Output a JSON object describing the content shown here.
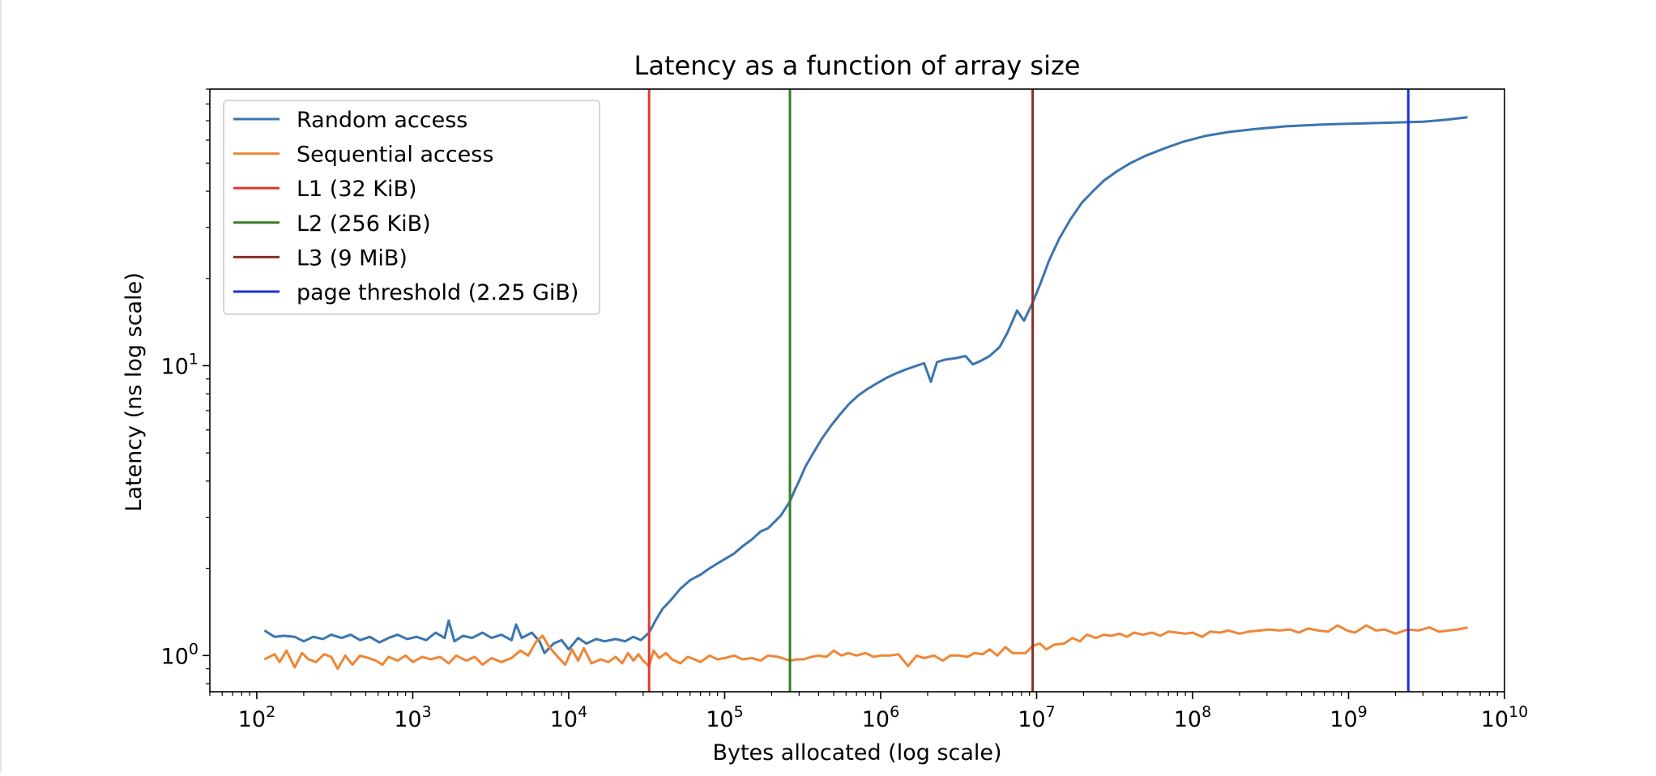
{
  "chart_data": {
    "type": "line",
    "title": "Latency as a function of array size",
    "xlabel": "Bytes allocated (log scale)",
    "ylabel": "Latency (ns log scale)",
    "x_scale": "log",
    "y_scale": "log",
    "xlim": [
      50,
      10000000000
    ],
    "ylim": [
      0.75,
      90
    ],
    "x_ticks": [
      {
        "value": 100,
        "base": "10",
        "exp": "2"
      },
      {
        "value": 1000,
        "base": "10",
        "exp": "3"
      },
      {
        "value": 10000,
        "base": "10",
        "exp": "4"
      },
      {
        "value": 100000,
        "base": "10",
        "exp": "5"
      },
      {
        "value": 1000000,
        "base": "10",
        "exp": "6"
      },
      {
        "value": 10000000,
        "base": "10",
        "exp": "7"
      },
      {
        "value": 100000000,
        "base": "10",
        "exp": "8"
      },
      {
        "value": 1000000000,
        "base": "10",
        "exp": "9"
      },
      {
        "value": 10000000000,
        "base": "10",
        "exp": "10"
      }
    ],
    "y_ticks": [
      {
        "value": 1,
        "base": "10",
        "exp": "0"
      },
      {
        "value": 10,
        "base": "10",
        "exp": "1"
      }
    ],
    "grid": false,
    "legend_position": "upper left",
    "series": [
      {
        "name": "Random access",
        "color": "#3b75af",
        "points": [
          [
            112,
            1.22
          ],
          [
            130,
            1.16
          ],
          [
            150,
            1.17
          ],
          [
            175,
            1.16
          ],
          [
            200,
            1.12
          ],
          [
            230,
            1.16
          ],
          [
            265,
            1.14
          ],
          [
            300,
            1.18
          ],
          [
            350,
            1.15
          ],
          [
            400,
            1.18
          ],
          [
            460,
            1.13
          ],
          [
            530,
            1.16
          ],
          [
            610,
            1.11
          ],
          [
            700,
            1.15
          ],
          [
            800,
            1.18
          ],
          [
            920,
            1.14
          ],
          [
            1060,
            1.16
          ],
          [
            1220,
            1.13
          ],
          [
            1400,
            1.2
          ],
          [
            1600,
            1.15
          ],
          [
            1700,
            1.32
          ],
          [
            1850,
            1.12
          ],
          [
            2100,
            1.17
          ],
          [
            2400,
            1.15
          ],
          [
            2800,
            1.2
          ],
          [
            3200,
            1.15
          ],
          [
            3700,
            1.18
          ],
          [
            4300,
            1.13
          ],
          [
            4600,
            1.28
          ],
          [
            5000,
            1.15
          ],
          [
            5800,
            1.2
          ],
          [
            6500,
            1.12
          ],
          [
            7000,
            1.02
          ],
          [
            8000,
            1.1
          ],
          [
            9000,
            1.13
          ],
          [
            10000,
            1.05
          ],
          [
            11500,
            1.15
          ],
          [
            13000,
            1.1
          ],
          [
            15000,
            1.14
          ],
          [
            17000,
            1.12
          ],
          [
            20000,
            1.14
          ],
          [
            23000,
            1.12
          ],
          [
            26000,
            1.16
          ],
          [
            29000,
            1.13
          ],
          [
            32768,
            1.2
          ],
          [
            36000,
            1.32
          ],
          [
            40000,
            1.45
          ],
          [
            45000,
            1.55
          ],
          [
            52000,
            1.7
          ],
          [
            60000,
            1.82
          ],
          [
            70000,
            1.9
          ],
          [
            80000,
            2.0
          ],
          [
            90000,
            2.08
          ],
          [
            100000,
            2.15
          ],
          [
            115000,
            2.25
          ],
          [
            130000,
            2.38
          ],
          [
            150000,
            2.52
          ],
          [
            170000,
            2.68
          ],
          [
            190000,
            2.75
          ],
          [
            210000,
            2.9
          ],
          [
            230000,
            3.05
          ],
          [
            262144,
            3.4
          ],
          [
            280000,
            3.7
          ],
          [
            300000,
            4.0
          ],
          [
            330000,
            4.5
          ],
          [
            370000,
            5.0
          ],
          [
            420000,
            5.6
          ],
          [
            480000,
            6.2
          ],
          [
            550000,
            6.8
          ],
          [
            630000,
            7.4
          ],
          [
            720000,
            7.9
          ],
          [
            820000,
            8.3
          ],
          [
            950000,
            8.7
          ],
          [
            1100000,
            9.1
          ],
          [
            1250000,
            9.4
          ],
          [
            1450000,
            9.7
          ],
          [
            1700000,
            10.0
          ],
          [
            1900000,
            10.2
          ],
          [
            2100000,
            8.8
          ],
          [
            2300000,
            10.3
          ],
          [
            2600000,
            10.5
          ],
          [
            3000000,
            10.6
          ],
          [
            3500000,
            10.8
          ],
          [
            3900000,
            10.1
          ],
          [
            4400000,
            10.4
          ],
          [
            5000000,
            10.8
          ],
          [
            5800000,
            11.6
          ],
          [
            6500000,
            13.0
          ],
          [
            7500000,
            15.5
          ],
          [
            8300000,
            14.3
          ],
          [
            9437184,
            16.5
          ],
          [
            10500000,
            19.0
          ],
          [
            12000000,
            23.0
          ],
          [
            14000000,
            27.5
          ],
          [
            16500000,
            32.0
          ],
          [
            19500000,
            36.5
          ],
          [
            23000000,
            40.0
          ],
          [
            27000000,
            43.5
          ],
          [
            33000000,
            47.0
          ],
          [
            40000000,
            50.0
          ],
          [
            50000000,
            53.0
          ],
          [
            65000000,
            56.0
          ],
          [
            85000000,
            59.0
          ],
          [
            120000000,
            62.0
          ],
          [
            170000000,
            64.0
          ],
          [
            250000000,
            65.5
          ],
          [
            400000000,
            67.0
          ],
          [
            700000000,
            68.0
          ],
          [
            1200000000,
            68.5
          ],
          [
            2000000000,
            69.0
          ],
          [
            3000000000,
            69.5
          ],
          [
            4200000000,
            70.5
          ],
          [
            5800000000,
            72.0
          ]
        ]
      },
      {
        "name": "Sequential access",
        "color": "#ef8636",
        "points": [
          [
            112,
            0.97
          ],
          [
            130,
            1.01
          ],
          [
            140,
            0.95
          ],
          [
            155,
            1.04
          ],
          [
            175,
            0.91
          ],
          [
            195,
            1.02
          ],
          [
            215,
            0.97
          ],
          [
            240,
            0.95
          ],
          [
            270,
            1.01
          ],
          [
            300,
            0.99
          ],
          [
            330,
            0.9
          ],
          [
            370,
            1.0
          ],
          [
            410,
            0.93
          ],
          [
            460,
            1.0
          ],
          [
            520,
            0.98
          ],
          [
            580,
            0.96
          ],
          [
            640,
            0.93
          ],
          [
            700,
            0.99
          ],
          [
            800,
            0.96
          ],
          [
            900,
            1.0
          ],
          [
            1000,
            0.95
          ],
          [
            1150,
            0.99
          ],
          [
            1300,
            0.97
          ],
          [
            1500,
            0.99
          ],
          [
            1700,
            0.94
          ],
          [
            1900,
            1.0
          ],
          [
            2200,
            0.96
          ],
          [
            2500,
            0.99
          ],
          [
            2800,
            0.93
          ],
          [
            3200,
            0.98
          ],
          [
            3700,
            0.95
          ],
          [
            4300,
            0.98
          ],
          [
            4900,
            1.04
          ],
          [
            5500,
            1.0
          ],
          [
            6200,
            1.12
          ],
          [
            6800,
            1.17
          ],
          [
            7500,
            1.07
          ],
          [
            8500,
            0.99
          ],
          [
            9500,
            0.93
          ],
          [
            10500,
            1.05
          ],
          [
            11500,
            0.96
          ],
          [
            12500,
            1.06
          ],
          [
            14000,
            0.94
          ],
          [
            16000,
            0.97
          ],
          [
            18000,
            0.95
          ],
          [
            20000,
            0.99
          ],
          [
            22000,
            0.94
          ],
          [
            24000,
            1.02
          ],
          [
            26000,
            0.96
          ],
          [
            28000,
            1.01
          ],
          [
            30000,
            0.96
          ],
          [
            32768,
            0.92
          ],
          [
            35000,
            1.04
          ],
          [
            38000,
            0.98
          ],
          [
            42000,
            1.02
          ],
          [
            46000,
            0.97
          ],
          [
            52000,
            0.94
          ],
          [
            58000,
            0.99
          ],
          [
            64000,
            0.97
          ],
          [
            70000,
            0.95
          ],
          [
            80000,
            1.0
          ],
          [
            90000,
            0.97
          ],
          [
            100000,
            0.98
          ],
          [
            115000,
            1.0
          ],
          [
            130000,
            0.97
          ],
          [
            150000,
            0.98
          ],
          [
            170000,
            0.96
          ],
          [
            190000,
            1.0
          ],
          [
            220000,
            0.99
          ],
          [
            262144,
            0.96
          ],
          [
            290000,
            0.97
          ],
          [
            320000,
            0.97
          ],
          [
            360000,
            0.99
          ],
          [
            400000,
            1.0
          ],
          [
            450000,
            0.99
          ],
          [
            500000,
            1.04
          ],
          [
            560000,
            1.0
          ],
          [
            620000,
            1.02
          ],
          [
            700000,
            1.0
          ],
          [
            800000,
            1.02
          ],
          [
            900000,
            0.99
          ],
          [
            1000000,
            1.0
          ],
          [
            1150000,
            1.0
          ],
          [
            1300000,
            1.01
          ],
          [
            1500000,
            0.92
          ],
          [
            1700000,
            1.0
          ],
          [
            1900000,
            0.98
          ],
          [
            2200000,
            1.0
          ],
          [
            2500000,
            0.96
          ],
          [
            2800000,
            1.0
          ],
          [
            3200000,
            1.0
          ],
          [
            3600000,
            0.99
          ],
          [
            4000000,
            1.02
          ],
          [
            4500000,
            1.01
          ],
          [
            5000000,
            1.05
          ],
          [
            5600000,
            1.0
          ],
          [
            6300000,
            1.07
          ],
          [
            7000000,
            1.02
          ],
          [
            7800000,
            1.02
          ],
          [
            8500000,
            1.02
          ],
          [
            9437184,
            1.08
          ],
          [
            10500000,
            1.1
          ],
          [
            11500000,
            1.05
          ],
          [
            13000000,
            1.09
          ],
          [
            15000000,
            1.1
          ],
          [
            17000000,
            1.15
          ],
          [
            19000000,
            1.12
          ],
          [
            21000000,
            1.18
          ],
          [
            24000000,
            1.15
          ],
          [
            27000000,
            1.18
          ],
          [
            30000000,
            1.17
          ],
          [
            34000000,
            1.19
          ],
          [
            38000000,
            1.16
          ],
          [
            42000000,
            1.2
          ],
          [
            48000000,
            1.18
          ],
          [
            55000000,
            1.2
          ],
          [
            62000000,
            1.17
          ],
          [
            70000000,
            1.21
          ],
          [
            80000000,
            1.2
          ],
          [
            90000000,
            1.19
          ],
          [
            100000000,
            1.2
          ],
          [
            115000000,
            1.16
          ],
          [
            130000000,
            1.21
          ],
          [
            150000000,
            1.2
          ],
          [
            170000000,
            1.22
          ],
          [
            200000000,
            1.19
          ],
          [
            230000000,
            1.21
          ],
          [
            270000000,
            1.22
          ],
          [
            310000000,
            1.23
          ],
          [
            360000000,
            1.22
          ],
          [
            420000000,
            1.23
          ],
          [
            480000000,
            1.2
          ],
          [
            550000000,
            1.24
          ],
          [
            640000000,
            1.22
          ],
          [
            740000000,
            1.21
          ],
          [
            850000000,
            1.27
          ],
          [
            980000000,
            1.22
          ],
          [
            1100000000,
            1.2
          ],
          [
            1300000000,
            1.27
          ],
          [
            1500000000,
            1.22
          ],
          [
            1700000000,
            1.23
          ],
          [
            2000000000,
            1.19
          ],
          [
            2400000000,
            1.23
          ],
          [
            2800000000,
            1.22
          ],
          [
            3300000000,
            1.25
          ],
          [
            3800000000,
            1.21
          ],
          [
            4400000000,
            1.22
          ],
          [
            5000000000,
            1.23
          ],
          [
            5800000000,
            1.25
          ]
        ]
      }
    ],
    "vlines": [
      {
        "name": "L1 (32 KiB)",
        "x": 32768,
        "color": "#e0392b"
      },
      {
        "name": "L2 (256 KiB)",
        "x": 262144,
        "color": "#3a7d22"
      },
      {
        "name": "L3 (9 MiB)",
        "x": 9437184,
        "color": "#8b2e2a"
      },
      {
        "name": "page threshold (2.25 GiB)",
        "x": 2415919104,
        "color": "#1c2ee0"
      }
    ]
  }
}
